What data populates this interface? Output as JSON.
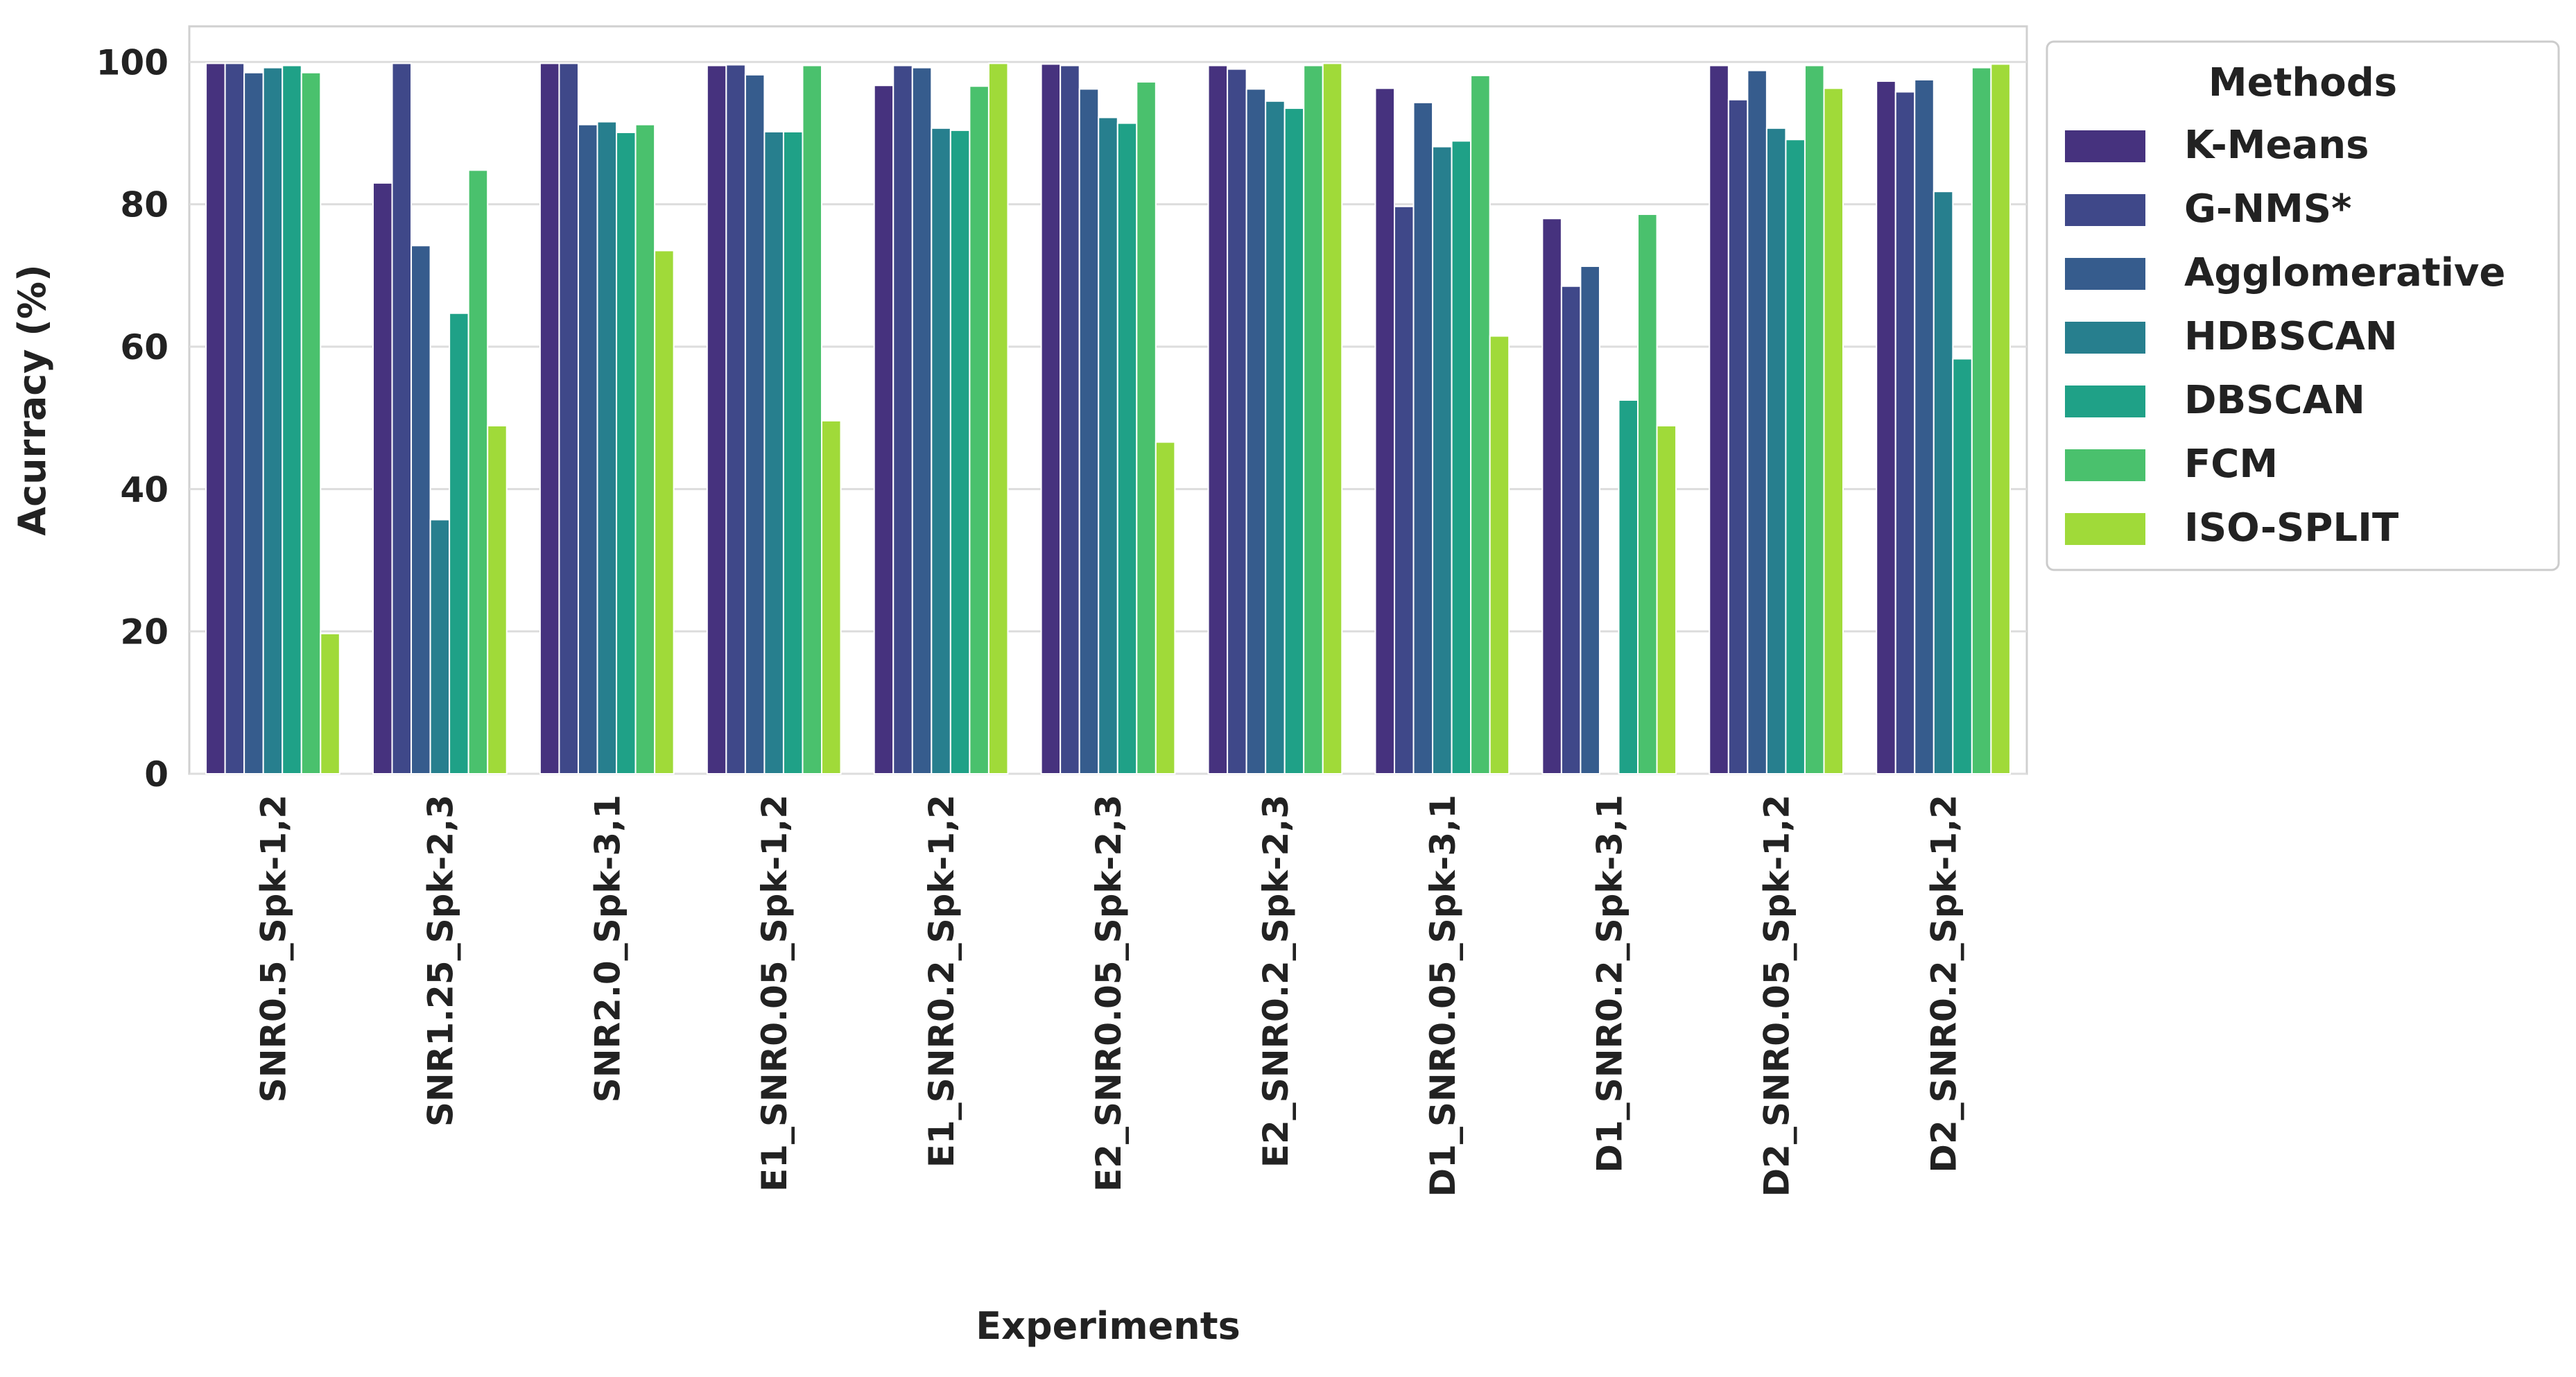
{
  "chart_data": {
    "type": "bar",
    "title": "",
    "xlabel": "Experiments",
    "ylabel": "Acurracy (%)",
    "ylim": [
      0,
      105
    ],
    "yticks": [
      0,
      20,
      40,
      60,
      80,
      100
    ],
    "grid": true,
    "legend_title": "Methods",
    "legend_position": "right",
    "categories": [
      "SNR0.5_Spk-1,2",
      "SNR1.25_Spk-2,3",
      "SNR2.0_Spk-3,1",
      "E1_SNR0.05_Spk-1,2",
      "E1_SNR0.2_Spk-1,2",
      "E2_SNR0.05_Spk-2,3",
      "E2_SNR0.2_Spk-2,3",
      "D1_SNR0.05_Spk-3,1",
      "D1_SNR0.2_Spk-3,1",
      "D2_SNR0.05_Spk-1,2",
      "D2_SNR0.2_Spk-1,2"
    ],
    "series": [
      {
        "name": "K-Means",
        "color": "#46327e",
        "values": [
          99.8,
          83,
          99.8,
          99.5,
          96.7,
          99.7,
          99.5,
          96.3,
          78,
          99.5,
          97.3
        ]
      },
      {
        "name": "G-NMS*",
        "color": "#3f4889",
        "values": [
          99.8,
          99.8,
          99.8,
          99.6,
          99.5,
          99.5,
          99,
          79.7,
          68.5,
          94.7,
          95.8
        ]
      },
      {
        "name": "Agglomerative",
        "color": "#365c8d",
        "values": [
          98.5,
          74.2,
          91.2,
          98.2,
          99.2,
          96.2,
          96.2,
          94.3,
          71.3,
          98.8,
          97.5
        ]
      },
      {
        "name": "HDBSCAN",
        "color": "#277f8e",
        "values": [
          99.2,
          35.7,
          91.6,
          90.2,
          90.7,
          92.2,
          94.5,
          88.1,
          0,
          90.7,
          81.8
        ]
      },
      {
        "name": "DBSCAN",
        "color": "#1fa187",
        "values": [
          99.5,
          64.7,
          90.1,
          90.2,
          90.4,
          91.4,
          93.5,
          88.9,
          52.5,
          89.1,
          58.3
        ]
      },
      {
        "name": "FCM",
        "color": "#4ac16d",
        "values": [
          98.5,
          84.8,
          91.2,
          99.5,
          96.6,
          97.2,
          99.5,
          98.1,
          78.6,
          99.5,
          99.2
        ]
      },
      {
        "name": "ISO-SPLIT",
        "color": "#a0da39",
        "values": [
          19.7,
          48.9,
          73.5,
          49.6,
          99.8,
          46.6,
          99.8,
          61.5,
          48.9,
          96.3,
          99.7
        ]
      }
    ]
  }
}
